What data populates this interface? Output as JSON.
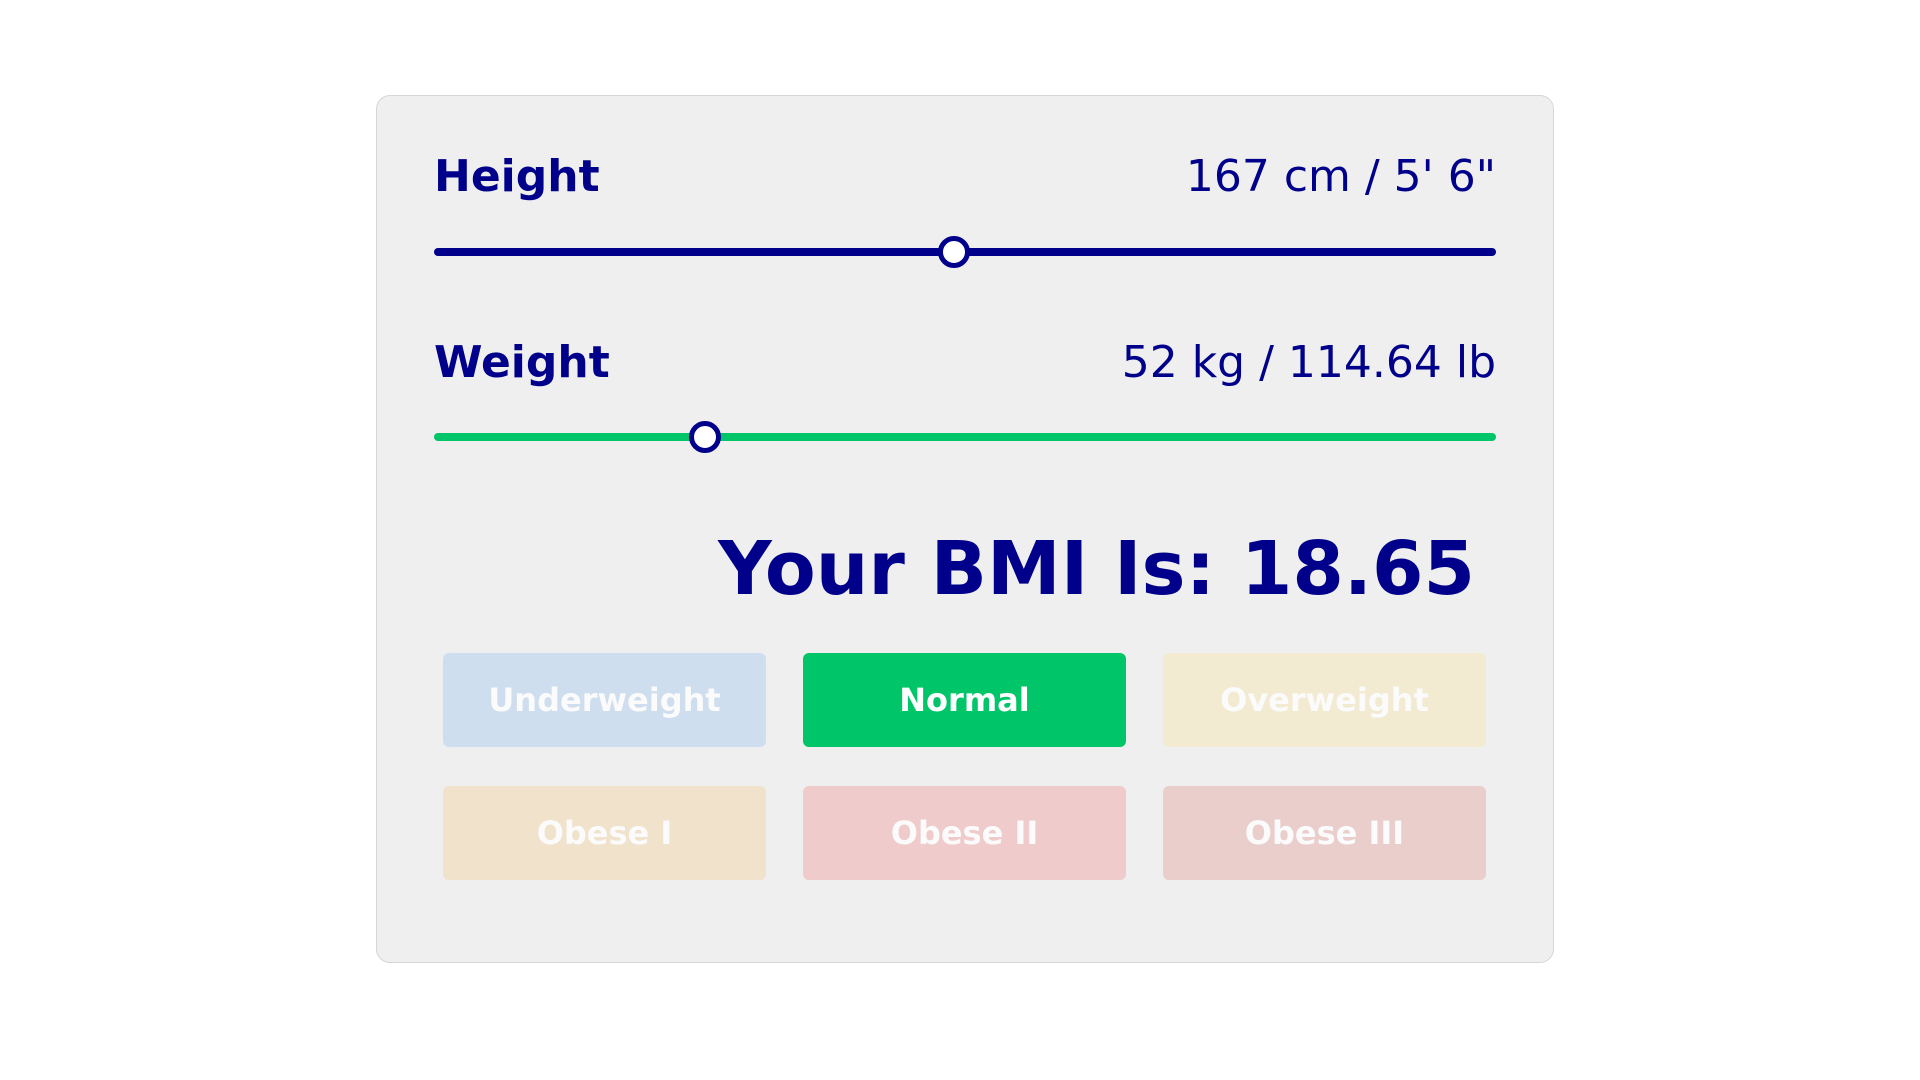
{
  "height": {
    "label": "Height",
    "value_text": "167 cm / 5' 6\"",
    "slider_fraction": 0.49,
    "track_color": "#00008b"
  },
  "weight": {
    "label": "Weight",
    "value_text": "52 kg / 114.64 lb",
    "slider_fraction": 0.255,
    "track_color": "#00c569"
  },
  "result": {
    "text": "Your BMI Is: 18.65"
  },
  "categories": [
    {
      "label": "Underweight",
      "color": "#c3d9f0",
      "active": false
    },
    {
      "label": "Normal",
      "color": "#00c569",
      "active": true
    },
    {
      "label": "Overweight",
      "color": "#f3e9c7",
      "active": false
    },
    {
      "label": "Obese I",
      "color": "#f2dec0",
      "active": false
    },
    {
      "label": "Obese II",
      "color": "#f0c1c0",
      "active": false
    },
    {
      "label": "Obese III",
      "color": "#e8c3c1",
      "active": false
    }
  ]
}
